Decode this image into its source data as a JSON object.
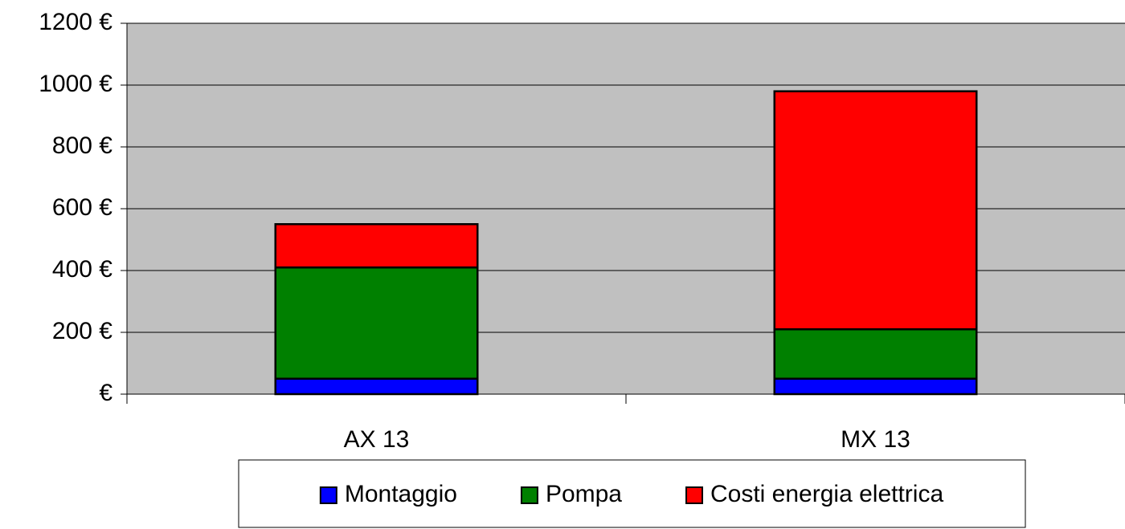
{
  "chart_data": {
    "type": "stacked_bar",
    "categories": [
      "AX 13",
      "MX 13"
    ],
    "series": [
      {
        "name": "Montaggio",
        "color": "#0000ff",
        "values": [
          50,
          50
        ]
      },
      {
        "name": "Pompa",
        "color": "#008000",
        "values": [
          360,
          160
        ]
      },
      {
        "name": "Costi energia elettrica",
        "color": "#ff0000",
        "values": [
          140,
          770
        ]
      }
    ],
    "ylim": [
      0,
      1200
    ],
    "yticks": [
      {
        "value": 0,
        "label": "€"
      },
      {
        "value": 200,
        "label": "200 €"
      },
      {
        "value": 400,
        "label": "400 €"
      },
      {
        "value": 600,
        "label": "600 €"
      },
      {
        "value": 800,
        "label": "800 €"
      },
      {
        "value": 1000,
        "label": "1000 €"
      },
      {
        "value": 1200,
        "label": "1200 €"
      }
    ],
    "grid": true,
    "legend": "bottom"
  }
}
